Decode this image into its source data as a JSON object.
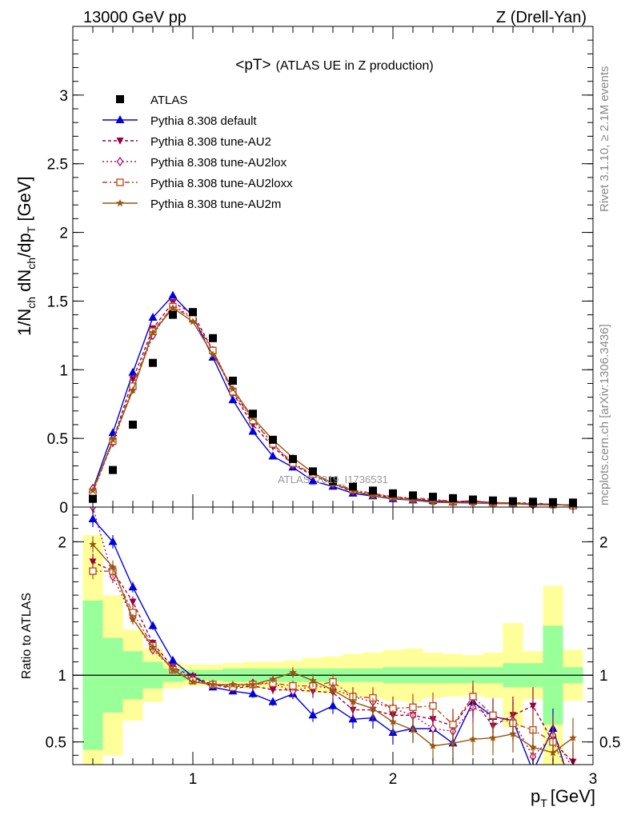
{
  "header": {
    "left": "13000 GeV pp",
    "right": "Z (Drell-Yan)"
  },
  "side_labels": {
    "top": "Rivet 3.1.10, ≥ 2.1M events",
    "bottom": "mcplots.cern.ch [arXiv:1306.3436]"
  },
  "watermark": "ATLAS_2019_I1736531",
  "colors": {
    "ATLAS": "#000000",
    "default": "#0000dd",
    "AU2": "#990044",
    "AU2lox": "#aa1166",
    "AU2loxx": "#bb4411",
    "AU2m": "#995511",
    "band_inner": "#99ff99",
    "band_outer": "#ffff99"
  },
  "chart_data": [
    {
      "type": "line",
      "title": "<pT> (ATLAS UE in Z production)",
      "title_main": "<pT>",
      "title_sub": "(ATLAS UE in Z production)",
      "xlabel": "p_T [GeV]",
      "xlabel_main": "p",
      "xlabel_sub": "T",
      "xlabel_unit": "[GeV]",
      "ylabel": "1/N_ch dN_ch/dp_T [GeV]",
      "ylabel_parts": {
        "p1": "1/N",
        "s1": "ch",
        "p2": " dN",
        "s2": "ch",
        "p3": "/dp",
        "s3": "T",
        "p4": " [GeV]"
      },
      "xlim": [
        0.4,
        3.0
      ],
      "ylim": [
        0,
        3.5
      ],
      "y_ticks": [
        0,
        0.5,
        1,
        1.5,
        2,
        2.5,
        3
      ],
      "y_tick_labels": [
        "0",
        "0.5",
        "1",
        "1.5",
        "2",
        "2.5",
        "3"
      ],
      "legend_position": "top-left",
      "x": [
        0.5,
        0.6,
        0.7,
        0.8,
        0.9,
        1.0,
        1.1,
        1.2,
        1.3,
        1.4,
        1.5,
        1.6,
        1.7,
        1.8,
        1.9,
        2.0,
        2.1,
        2.2,
        2.3,
        2.4,
        2.5,
        2.6,
        2.7,
        2.8,
        2.9
      ],
      "series": [
        {
          "key": "ATLAS",
          "name": "ATLAS",
          "marker": "square",
          "values": [
            0.06,
            0.27,
            0.6,
            1.05,
            1.4,
            1.42,
            1.23,
            0.92,
            0.68,
            0.49,
            0.35,
            0.26,
            0.19,
            0.15,
            0.12,
            0.1,
            0.085,
            0.075,
            0.065,
            0.055,
            0.048,
            0.043,
            0.039,
            0.036,
            0.033
          ]
        },
        {
          "key": "default",
          "name": "Pythia 8.308 default",
          "marker": "triangle-up",
          "dash": "",
          "values": [
            0.13,
            0.54,
            0.98,
            1.38,
            1.54,
            1.39,
            1.09,
            0.78,
            0.55,
            0.37,
            0.29,
            0.19,
            0.15,
            0.1,
            0.08,
            0.06,
            0.05,
            0.045,
            0.035,
            0.04,
            0.033,
            0.028,
            0.021,
            0.021,
            0.012
          ]
        },
        {
          "key": "AU2",
          "name": "Pythia 8.308 tune-AU2",
          "marker": "triangle-down",
          "dash": "4,3",
          "values": [
            0.11,
            0.48,
            0.93,
            1.3,
            1.49,
            1.41,
            1.14,
            0.83,
            0.6,
            0.44,
            0.31,
            0.23,
            0.17,
            0.11,
            0.09,
            0.07,
            0.06,
            0.05,
            0.04,
            0.045,
            0.03,
            0.03,
            0.03,
            0.018,
            0.012
          ]
        },
        {
          "key": "AU2lox",
          "name": "Pythia 8.308 tune-AU2lox",
          "marker": "diamond-open",
          "dash": "2,3",
          "values": [
            0.135,
            0.47,
            0.86,
            1.25,
            1.47,
            1.38,
            1.14,
            0.85,
            0.64,
            0.46,
            0.31,
            0.24,
            0.17,
            0.12,
            0.095,
            0.075,
            0.06,
            0.045,
            0.038,
            0.042,
            0.033,
            0.028,
            0.015,
            0.02,
            0.01
          ]
        },
        {
          "key": "AU2loxx",
          "name": "Pythia 8.308 tune-AU2loxx",
          "marker": "square-open",
          "dash": "6,3,2,3",
          "values": [
            0.107,
            0.48,
            0.88,
            1.28,
            1.46,
            1.37,
            1.14,
            0.84,
            0.63,
            0.46,
            0.32,
            0.24,
            0.18,
            0.125,
            0.1,
            0.075,
            0.065,
            0.058,
            0.041,
            0.046,
            0.033,
            0.028,
            0.027,
            0.018,
            0.01
          ]
        },
        {
          "key": "AU2m",
          "name": "Pythia 8.308 tune-AU2m",
          "marker": "star",
          "dash": "",
          "values": [
            0.12,
            0.49,
            0.85,
            1.27,
            1.45,
            1.35,
            1.11,
            0.86,
            0.65,
            0.49,
            0.36,
            0.25,
            0.17,
            0.12,
            0.08,
            0.065,
            0.05,
            0.035,
            0.032,
            0.029,
            0.025,
            0.024,
            0.018,
            0.015,
            0.018
          ]
        }
      ]
    },
    {
      "type": "line",
      "ylabel": "Ratio to ATLAS",
      "xlim": [
        0.4,
        3.0
      ],
      "ylim": [
        0.33,
        2.26
      ],
      "y_ticks": [
        0.5,
        1,
        2
      ],
      "y_tick_labels": [
        "0.5",
        "1",
        "2"
      ],
      "x_ticks": [
        1,
        2,
        3
      ],
      "x_tick_labels": [
        "1",
        "2",
        "3"
      ],
      "x": [
        0.5,
        0.6,
        0.7,
        0.8,
        0.9,
        1.0,
        1.1,
        1.2,
        1.3,
        1.4,
        1.5,
        1.6,
        1.7,
        1.8,
        1.9,
        2.0,
        2.1,
        2.2,
        2.3,
        2.4,
        2.5,
        2.6,
        2.7,
        2.8,
        2.9
      ],
      "band_inner_half": [
        0.56,
        0.28,
        0.18,
        0.1,
        0.05,
        0.04,
        0.04,
        0.05,
        0.05,
        0.05,
        0.05,
        0.05,
        0.05,
        0.05,
        0.05,
        0.06,
        0.06,
        0.06,
        0.06,
        0.06,
        0.06,
        0.09,
        0.09,
        0.37,
        0.06
      ],
      "band_outer_half": [
        1.05,
        0.6,
        0.34,
        0.2,
        0.1,
        0.08,
        0.08,
        0.09,
        0.1,
        0.1,
        0.11,
        0.13,
        0.14,
        0.16,
        0.17,
        0.19,
        0.2,
        0.17,
        0.16,
        0.15,
        0.17,
        0.39,
        0.18,
        0.67,
        0.19
      ],
      "series": [
        {
          "key": "default",
          "values": [
            2.17,
            2.0,
            1.66,
            1.37,
            1.11,
            0.99,
            0.91,
            0.88,
            0.86,
            0.8,
            0.86,
            0.7,
            0.77,
            0.67,
            0.68,
            0.57,
            0.6,
            0.6,
            0.49,
            0.8,
            0.69,
            0.66,
            0.28,
            0.6,
            0.12
          ],
          "errors": [
            0.06,
            0.05,
            0.04,
            0.03,
            0.02,
            0.02,
            0.02,
            0.02,
            0.03,
            0.03,
            0.04,
            0.05,
            0.06,
            0.07,
            0.08,
            0.09,
            0.1,
            0.1,
            0.12,
            0.12,
            0.13,
            0.14,
            0.14,
            0.15,
            0.15
          ]
        },
        {
          "key": "AU2",
          "values": [
            1.85,
            1.78,
            1.55,
            1.24,
            1.06,
            0.99,
            0.93,
            0.9,
            0.92,
            0.89,
            0.89,
            0.88,
            0.87,
            0.74,
            0.74,
            0.7,
            0.7,
            0.67,
            0.62,
            0.82,
            0.62,
            0.7,
            0.77,
            0.5,
            0.35
          ],
          "errors": [
            0.06,
            0.05,
            0.04,
            0.03,
            0.02,
            0.02,
            0.02,
            0.02,
            0.03,
            0.03,
            0.04,
            0.05,
            0.06,
            0.07,
            0.08,
            0.09,
            0.1,
            0.1,
            0.12,
            0.12,
            0.13,
            0.14,
            0.14,
            0.15,
            0.15
          ]
        },
        {
          "key": "AU2lox",
          "values": [
            2.26,
            1.74,
            1.43,
            1.19,
            1.05,
            0.97,
            0.93,
            0.92,
            0.94,
            0.94,
            0.88,
            0.92,
            0.9,
            0.84,
            0.8,
            0.75,
            0.7,
            0.6,
            0.58,
            0.76,
            0.69,
            0.66,
            0.39,
            0.55,
            0.3
          ],
          "errors": [
            0.06,
            0.05,
            0.04,
            0.03,
            0.02,
            0.02,
            0.02,
            0.02,
            0.03,
            0.03,
            0.04,
            0.05,
            0.06,
            0.07,
            0.08,
            0.09,
            0.1,
            0.1,
            0.12,
            0.12,
            0.13,
            0.14,
            0.14,
            0.15,
            0.15
          ]
        },
        {
          "key": "AU2loxx",
          "values": [
            1.78,
            1.78,
            1.47,
            1.22,
            1.04,
            0.96,
            0.93,
            0.91,
            0.93,
            0.94,
            0.92,
            0.92,
            0.95,
            0.84,
            0.83,
            0.75,
            0.76,
            0.77,
            0.63,
            0.84,
            0.7,
            0.64,
            0.59,
            0.5,
            0.2
          ],
          "errors": [
            0.06,
            0.05,
            0.04,
            0.03,
            0.02,
            0.02,
            0.02,
            0.02,
            0.03,
            0.03,
            0.04,
            0.05,
            0.06,
            0.07,
            0.08,
            0.09,
            0.1,
            0.1,
            0.12,
            0.12,
            0.13,
            0.14,
            0.14,
            0.15,
            0.15
          ]
        },
        {
          "key": "AU2m",
          "values": [
            1.98,
            1.81,
            1.42,
            1.21,
            1.04,
            0.95,
            0.93,
            0.93,
            0.93,
            0.97,
            1.02,
            0.96,
            0.89,
            0.8,
            0.75,
            0.65,
            0.59,
            0.47,
            0.49,
            0.52,
            0.53,
            0.56,
            0.46,
            0.42,
            0.53
          ],
          "errors": [
            0.06,
            0.05,
            0.04,
            0.03,
            0.02,
            0.02,
            0.02,
            0.02,
            0.03,
            0.03,
            0.04,
            0.05,
            0.06,
            0.07,
            0.08,
            0.09,
            0.1,
            0.1,
            0.12,
            0.12,
            0.13,
            0.14,
            0.14,
            0.15,
            0.15
          ]
        }
      ]
    }
  ]
}
